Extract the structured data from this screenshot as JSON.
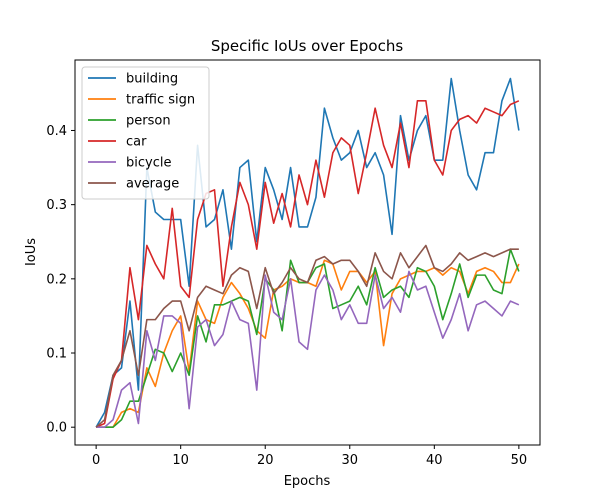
{
  "chart_data": {
    "type": "line",
    "title": "Specific IoUs over Epochs",
    "xlabel": "Epochs",
    "ylabel": "IoUs",
    "xlim": [
      -2.5,
      52.5
    ],
    "ylim": [
      -0.024,
      0.495
    ],
    "xticks": [
      0,
      10,
      20,
      30,
      40,
      50
    ],
    "yticks": [
      0.0,
      0.1,
      0.2,
      0.3,
      0.4
    ],
    "ytick_labels": [
      "0.0",
      "0.1",
      "0.2",
      "0.3",
      "0.4"
    ],
    "grid": false,
    "legend_position": "top-left",
    "x": [
      0,
      1,
      2,
      3,
      4,
      5,
      6,
      7,
      8,
      9,
      10,
      11,
      12,
      13,
      14,
      15,
      16,
      17,
      18,
      19,
      20,
      21,
      22,
      23,
      24,
      25,
      26,
      27,
      28,
      29,
      30,
      31,
      32,
      33,
      34,
      35,
      36,
      37,
      38,
      39,
      40,
      41,
      42,
      43,
      44,
      45,
      46,
      47,
      48,
      49,
      50
    ],
    "series": [
      {
        "name": "building",
        "color": "#1f77b4",
        "values": [
          0.0,
          0.02,
          0.07,
          0.08,
          0.17,
          0.05,
          0.35,
          0.29,
          0.28,
          0.28,
          0.28,
          0.19,
          0.38,
          0.27,
          0.28,
          0.32,
          0.24,
          0.35,
          0.36,
          0.25,
          0.35,
          0.32,
          0.28,
          0.35,
          0.27,
          0.27,
          0.31,
          0.43,
          0.39,
          0.36,
          0.37,
          0.4,
          0.35,
          0.37,
          0.34,
          0.26,
          0.42,
          0.36,
          0.4,
          0.42,
          0.36,
          0.36,
          0.47,
          0.4,
          0.34,
          0.32,
          0.37,
          0.37,
          0.44,
          0.47,
          0.4
        ]
      },
      {
        "name": "traffic sign",
        "color": "#ff7f0e",
        "values": [
          0.0,
          0.0,
          0.0,
          0.02,
          0.025,
          0.02,
          0.08,
          0.055,
          0.1,
          0.13,
          0.15,
          0.075,
          0.17,
          0.145,
          0.14,
          0.175,
          0.195,
          0.18,
          0.16,
          0.13,
          0.12,
          0.185,
          0.19,
          0.2,
          0.195,
          0.195,
          0.19,
          0.225,
          0.22,
          0.185,
          0.21,
          0.21,
          0.195,
          0.21,
          0.11,
          0.18,
          0.2,
          0.205,
          0.21,
          0.21,
          0.215,
          0.205,
          0.215,
          0.21,
          0.18,
          0.21,
          0.215,
          0.21,
          0.195,
          0.195,
          0.22
        ]
      },
      {
        "name": "person",
        "color": "#2ca02c",
        "values": [
          0.0,
          0.0,
          0.0,
          0.01,
          0.035,
          0.035,
          0.07,
          0.105,
          0.1,
          0.075,
          0.1,
          0.07,
          0.15,
          0.115,
          0.165,
          0.165,
          0.17,
          0.175,
          0.17,
          0.125,
          0.2,
          0.185,
          0.13,
          0.225,
          0.195,
          0.195,
          0.215,
          0.22,
          0.16,
          0.165,
          0.17,
          0.19,
          0.165,
          0.215,
          0.175,
          0.185,
          0.19,
          0.175,
          0.215,
          0.21,
          0.19,
          0.145,
          0.18,
          0.22,
          0.175,
          0.205,
          0.205,
          0.185,
          0.18,
          0.24,
          0.21
        ]
      },
      {
        "name": "car",
        "color": "#d62728",
        "values": [
          0.0,
          0.005,
          0.065,
          0.09,
          0.215,
          0.145,
          0.245,
          0.22,
          0.2,
          0.295,
          0.19,
          0.175,
          0.28,
          0.315,
          0.32,
          0.19,
          0.27,
          0.33,
          0.3,
          0.24,
          0.33,
          0.275,
          0.315,
          0.27,
          0.34,
          0.3,
          0.36,
          0.31,
          0.37,
          0.39,
          0.38,
          0.315,
          0.37,
          0.43,
          0.38,
          0.35,
          0.41,
          0.35,
          0.44,
          0.44,
          0.36,
          0.34,
          0.4,
          0.415,
          0.42,
          0.41,
          0.43,
          0.425,
          0.42,
          0.435,
          0.44
        ]
      },
      {
        "name": "bicycle",
        "color": "#9467bd",
        "values": [
          0.0,
          0.0,
          0.01,
          0.05,
          0.06,
          0.005,
          0.13,
          0.09,
          0.15,
          0.15,
          0.14,
          0.025,
          0.135,
          0.145,
          0.11,
          0.125,
          0.17,
          0.145,
          0.14,
          0.05,
          0.205,
          0.155,
          0.145,
          0.2,
          0.115,
          0.105,
          0.185,
          0.205,
          0.185,
          0.145,
          0.165,
          0.14,
          0.14,
          0.205,
          0.16,
          0.175,
          0.155,
          0.21,
          0.185,
          0.19,
          0.155,
          0.12,
          0.145,
          0.18,
          0.13,
          0.165,
          0.17,
          0.16,
          0.15,
          0.17,
          0.165
        ]
      },
      {
        "name": "average",
        "color": "#8c564b",
        "values": [
          0.0,
          0.01,
          0.07,
          0.09,
          0.13,
          0.07,
          0.145,
          0.145,
          0.16,
          0.17,
          0.17,
          0.13,
          0.175,
          0.19,
          0.185,
          0.18,
          0.205,
          0.215,
          0.21,
          0.16,
          0.215,
          0.18,
          0.195,
          0.215,
          0.2,
          0.195,
          0.225,
          0.23,
          0.22,
          0.225,
          0.225,
          0.21,
          0.19,
          0.235,
          0.21,
          0.2,
          0.235,
          0.215,
          0.23,
          0.245,
          0.215,
          0.21,
          0.22,
          0.235,
          0.225,
          0.23,
          0.235,
          0.23,
          0.235,
          0.24,
          0.24
        ]
      }
    ]
  }
}
